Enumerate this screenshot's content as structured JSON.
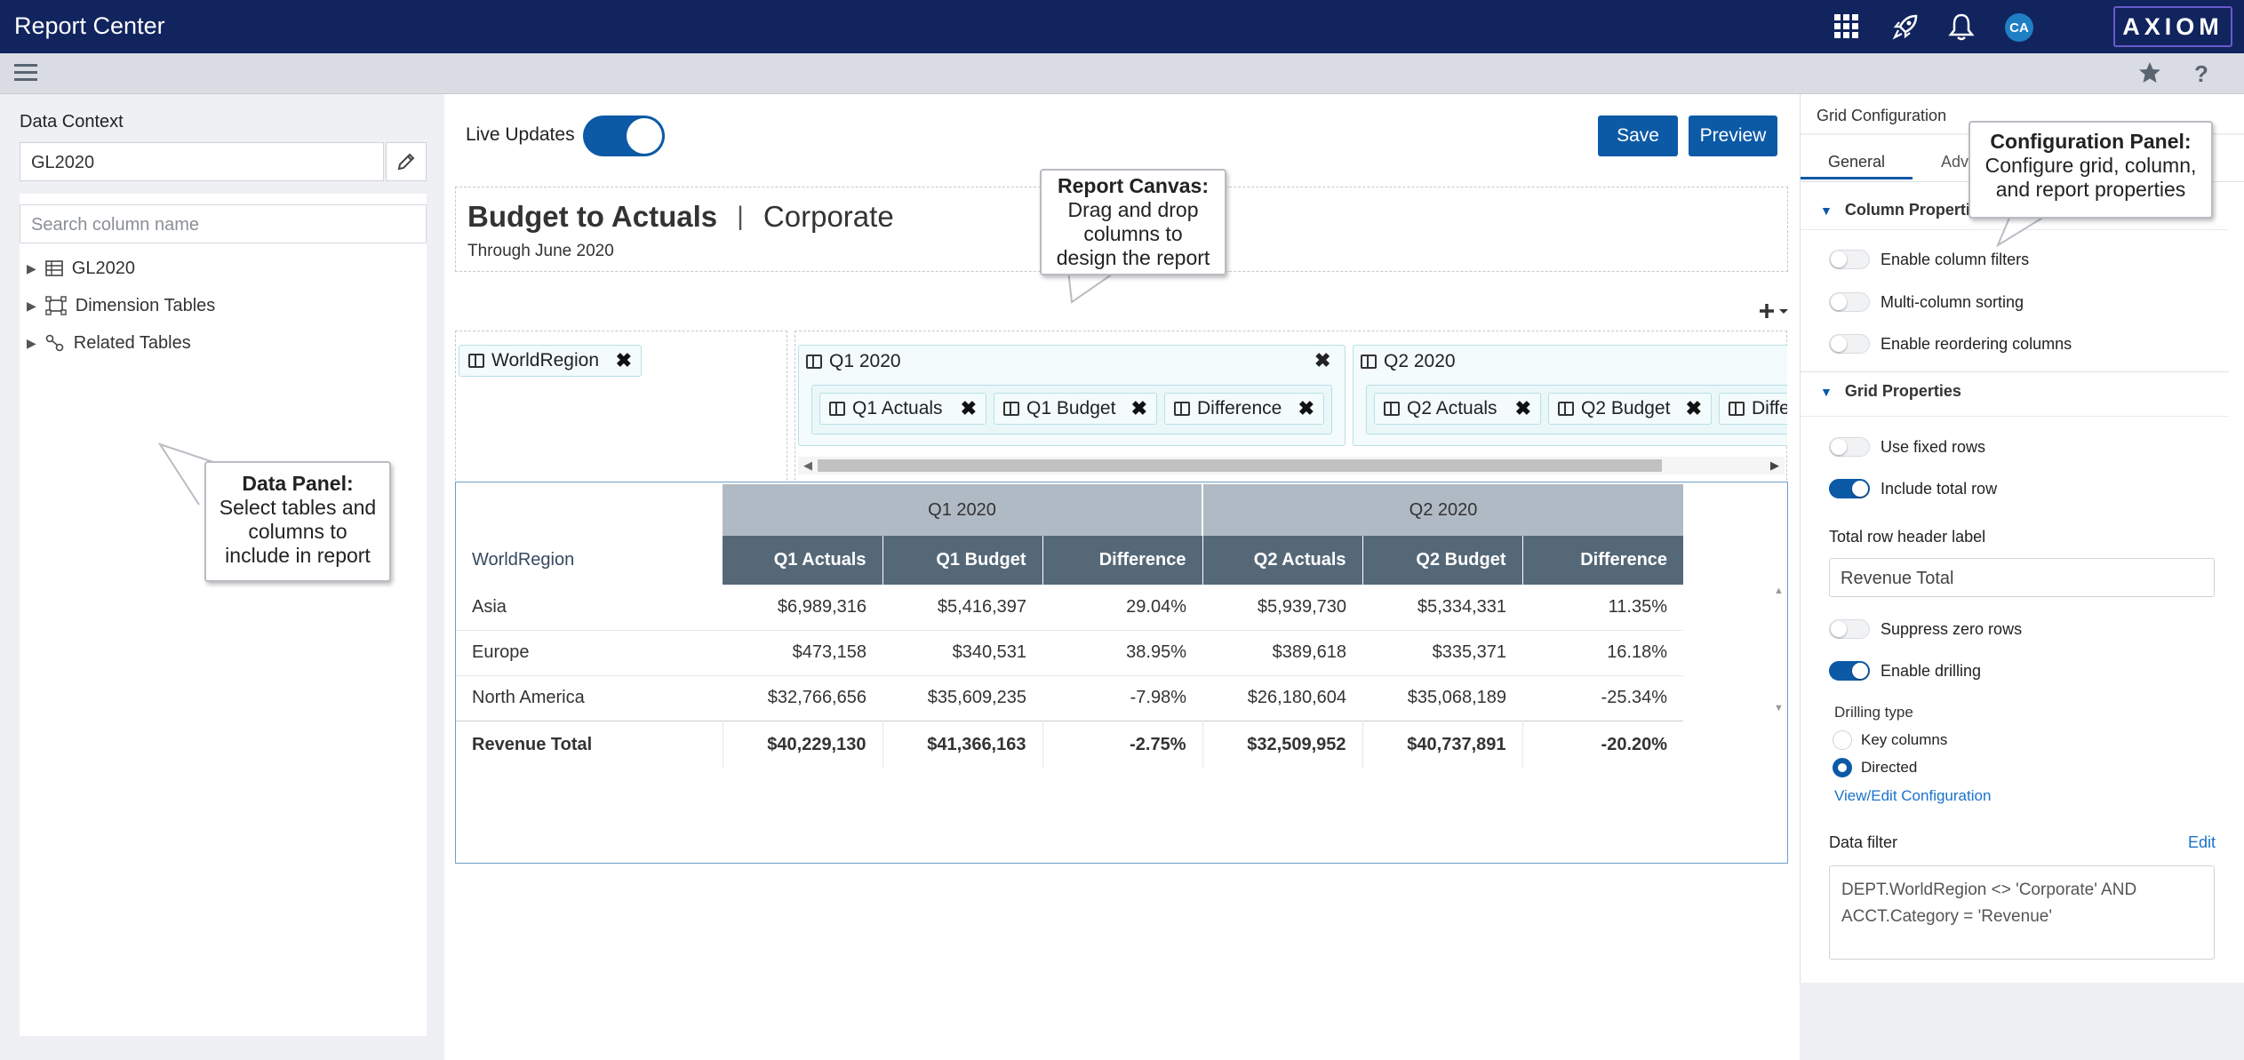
{
  "app": {
    "title": "Report Center",
    "logo": "AXIOM",
    "avatar_initials": "CA",
    "brand_color": "#11245e",
    "accent_color": "#0c5aa6"
  },
  "topbar_icons": [
    "apps-grid-icon",
    "rocket-icon",
    "bell-icon"
  ],
  "subbar_icons": [
    "menu-icon",
    "star-icon",
    "help-icon"
  ],
  "left": {
    "data_context_label": "Data Context",
    "data_context_value": "GL2020",
    "search_placeholder": "Search column name",
    "tree": [
      {
        "label": "GL2020",
        "icon": "table-icon"
      },
      {
        "label": "Dimension Tables",
        "icon": "dimension-icon"
      },
      {
        "label": "Related Tables",
        "icon": "link-icon"
      }
    ]
  },
  "canvas": {
    "live_updates_label": "Live Updates",
    "live_updates_on": true,
    "save_label": "Save",
    "preview_label": "Preview",
    "report_title": "Budget to Actuals",
    "separator": "|",
    "report_subtitle": "Corporate",
    "report_period": "Through June 2020",
    "add_icon": "plus-dropdown-icon"
  },
  "builder": {
    "row_chip": "WorldRegion",
    "groups": [
      {
        "label": "Q1 2020",
        "columns": [
          "Q1 Actuals",
          "Q1 Budget",
          "Difference"
        ]
      },
      {
        "label": "Q2 2020",
        "columns": [
          "Q2 Actuals",
          "Q2 Budget",
          "Diffe"
        ]
      }
    ]
  },
  "grid": {
    "row_header": "WorldRegion",
    "groups": [
      "Q1 2020",
      "Q2 2020"
    ],
    "columns": [
      "Q1 Actuals",
      "Q1 Budget",
      "Difference",
      "Q2 Actuals",
      "Q2 Budget",
      "Difference"
    ],
    "rows": [
      {
        "name": "Asia",
        "values": [
          "$6,989,316",
          "$5,416,397",
          "29.04%",
          "$5,939,730",
          "$5,334,331",
          "11.35%"
        ]
      },
      {
        "name": "Europe",
        "values": [
          "$473,158",
          "$340,531",
          "38.95%",
          "$389,618",
          "$335,371",
          "16.18%"
        ]
      },
      {
        "name": "North America",
        "values": [
          "$32,766,656",
          "$35,609,235",
          "-7.98%",
          "$26,180,604",
          "$35,068,189",
          "-25.34%"
        ]
      }
    ],
    "total": {
      "name": "Revenue Total",
      "values": [
        "$40,229,130",
        "$41,366,163",
        "-2.75%",
        "$32,509,952",
        "$40,737,891",
        "-20.20%"
      ]
    }
  },
  "config": {
    "title": "Grid Configuration",
    "tabs": [
      "General",
      "Adv"
    ],
    "column_section": "Column Properties",
    "column_toggles": [
      {
        "label": "Enable column filters",
        "on": false
      },
      {
        "label": "Multi-column sorting",
        "on": false
      },
      {
        "label": "Enable reordering columns",
        "on": false
      }
    ],
    "grid_section": "Grid Properties",
    "grid_toggles": [
      {
        "label": "Use fixed rows",
        "on": false
      },
      {
        "label": "Include total row",
        "on": true
      }
    ],
    "total_label_caption": "Total row header label",
    "total_label_value": "Revenue Total",
    "more_toggles": [
      {
        "label": "Suppress zero rows",
        "on": false
      },
      {
        "label": "Enable drilling",
        "on": true
      }
    ],
    "drilling_type_label": "Drilling type",
    "drilling_options": [
      {
        "label": "Key columns",
        "selected": false
      },
      {
        "label": "Directed",
        "selected": true
      }
    ],
    "view_edit_link": "View/Edit Configuration",
    "data_filter_label": "Data filter",
    "edit_link": "Edit",
    "data_filter_line1": "DEPT.WorldRegion <> 'Corporate'  AND",
    "data_filter_line2": "ACCT.Category = 'Revenue'"
  },
  "callouts": {
    "data_panel_title": "Data Panel:",
    "data_panel_lines": [
      "Select tables and",
      "columns to",
      "include in report"
    ],
    "canvas_title": "Report Canvas:",
    "canvas_lines": [
      "Drag and drop",
      "columns to",
      "design the report"
    ],
    "config_title": "Configuration Panel:",
    "config_lines": [
      "Configure grid, column,",
      "and report properties"
    ]
  }
}
